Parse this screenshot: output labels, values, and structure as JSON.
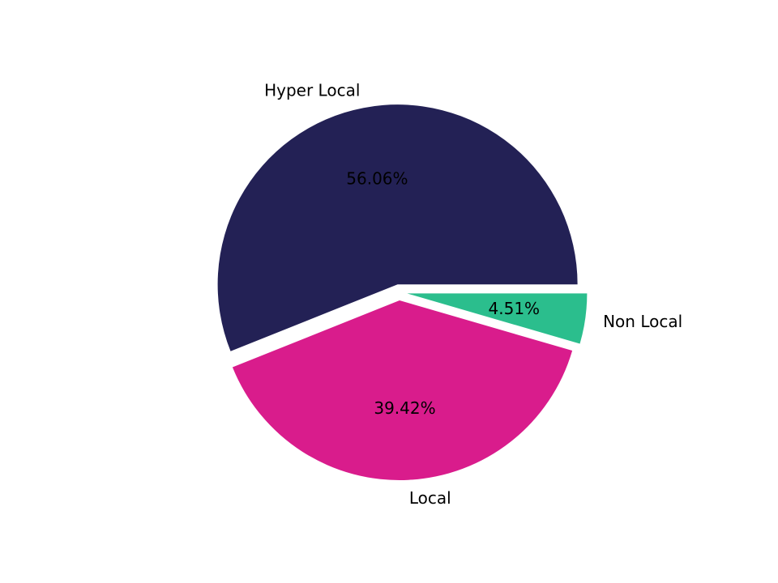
{
  "figure": {
    "background": "#ffffff"
  },
  "chart_data": {
    "type": "pie",
    "title": "",
    "categories": [
      "Hyper Local",
      "Local",
      "Non Local"
    ],
    "values": [
      56.06,
      39.42,
      4.51
    ],
    "slices": [
      {
        "label": "Hyper Local",
        "value": 56.06,
        "pct_label": "56.06%",
        "color": "#232155"
      },
      {
        "label": "Local",
        "value": 39.42,
        "pct_label": "39.42%",
        "color": "#d91c8c"
      },
      {
        "label": "Non Local",
        "value": 4.51,
        "pct_label": "4.51%",
        "color": "#2bbe8d"
      }
    ],
    "start_angle_deg": 0,
    "direction": "counterclockwise",
    "explode": 0.045,
    "pct_distance": 0.6,
    "label_distance": 1.1,
    "label_color": "#000000",
    "pct_label_color": "#000000",
    "legend": "none",
    "grid": "off"
  }
}
